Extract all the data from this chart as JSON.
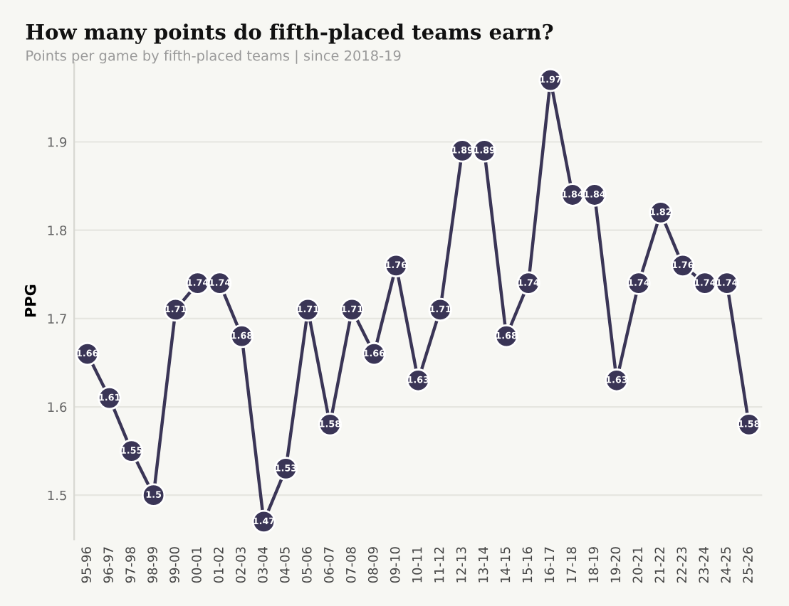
{
  "chart_data": {
    "type": "line",
    "title": "How many points do fifth-placed teams earn?",
    "subtitle": "Points per game by fifth-placed teams | since 2018-19",
    "ylabel": "PPG",
    "categories": [
      "95-96",
      "96-97",
      "97-98",
      "98-99",
      "99-00",
      "00-01",
      "01-02",
      "02-03",
      "03-04",
      "04-05",
      "05-06",
      "06-07",
      "07-08",
      "08-09",
      "09-10",
      "10-11",
      "11-12",
      "12-13",
      "13-14",
      "14-15",
      "15-16",
      "16-17",
      "17-18",
      "18-19",
      "19-20",
      "20-21",
      "21-22",
      "22-23",
      "23-24",
      "24-25",
      "25-26"
    ],
    "series": [
      {
        "color": "#3a3556",
        "values": [
          1.66,
          1.61,
          1.55,
          1.5,
          1.71,
          1.74,
          1.74,
          1.68,
          1.47,
          1.53,
          1.71,
          1.58,
          1.71,
          1.66,
          1.76,
          1.63,
          1.71,
          1.89,
          1.89,
          1.68,
          1.74,
          1.97,
          1.84,
          1.84,
          1.63,
          1.74,
          1.82,
          1.76,
          1.74,
          1.74,
          1.58
        ]
      }
    ],
    "ylim": [
      1.45,
      1.99
    ],
    "yticks": [
      1.5,
      1.6,
      1.7,
      1.8,
      1.9
    ],
    "grid": "y",
    "marker": "circle",
    "line_style": "solid",
    "data_labels": true
  }
}
